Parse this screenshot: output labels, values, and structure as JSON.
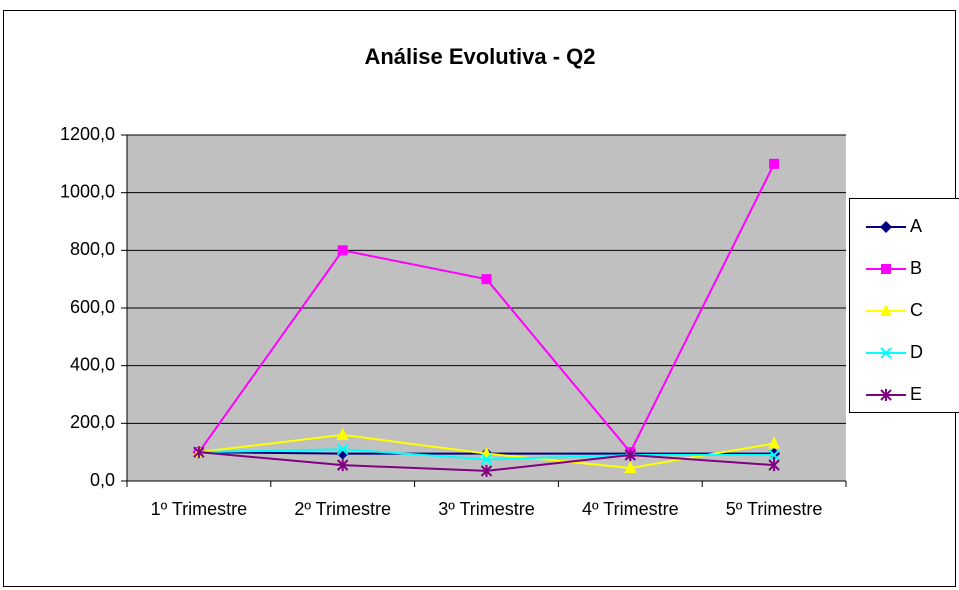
{
  "chart_data": {
    "type": "line",
    "title": "Análise Evolutiva - Q2",
    "categories": [
      "1º Trimestre",
      "2º Trimestre",
      "3º Trimestre",
      "4º Trimestre",
      "5º Trimestre"
    ],
    "series": [
      {
        "name": "A",
        "color": "#000080",
        "values": [
          100,
          95,
          95,
          95,
          95
        ]
      },
      {
        "name": "B",
        "color": "#ff00ff",
        "values": [
          100,
          800,
          700,
          100,
          1100
        ]
      },
      {
        "name": "C",
        "color": "#ffff00",
        "values": [
          100,
          160,
          95,
          45,
          130
        ]
      },
      {
        "name": "D",
        "color": "#00ffff",
        "values": [
          100,
          110,
          75,
          90,
          90
        ]
      },
      {
        "name": "E",
        "color": "#800080",
        "values": [
          100,
          55,
          35,
          90,
          55
        ]
      }
    ],
    "ylim": [
      0,
      1200
    ],
    "yticks": [
      {
        "value": 0,
        "label": "0,0"
      },
      {
        "value": 200,
        "label": "200,0"
      },
      {
        "value": 400,
        "label": "400,0"
      },
      {
        "value": 600,
        "label": "600,0"
      },
      {
        "value": 800,
        "label": "800,0"
      },
      {
        "value": 1000,
        "label": "1000,0"
      },
      {
        "value": 1200,
        "label": "1200,0"
      }
    ],
    "grid": true,
    "legend": "right"
  }
}
